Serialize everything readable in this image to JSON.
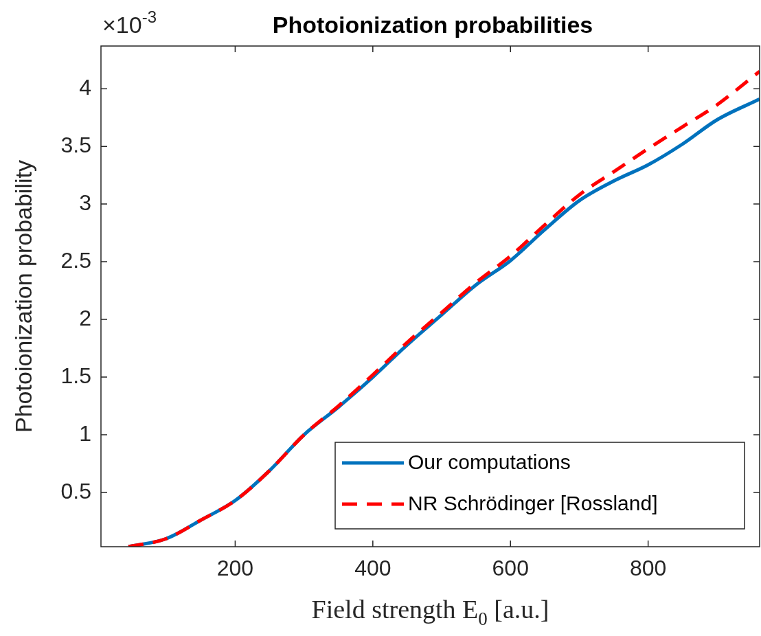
{
  "chart_data": {
    "type": "line",
    "title": "Photoionization probabilities",
    "xlabel": "Field strength E$_{0}$ [a.u.]",
    "ylabel": "Photoionization probability",
    "annotations": [
      "×10$^{-3}$"
    ],
    "xlim": [
      5,
      962
    ],
    "ylim": [
      0.03,
      4.37
    ],
    "xticks": [
      200,
      400,
      600,
      800
    ],
    "yticks": [
      0.5,
      1,
      1.5,
      2,
      2.5,
      3,
      3.5,
      4
    ],
    "legend": "bottom right",
    "series": [
      {
        "name": "Our computations",
        "color": "#0072bd",
        "line_style": "solid",
        "x": [
          45,
          100,
          150,
          200,
          250,
          300,
          350,
          400,
          450,
          500,
          550,
          600,
          650,
          700,
          750,
          800,
          850,
          900,
          962
        ],
        "values": [
          0.03,
          0.1,
          0.26,
          0.43,
          0.69,
          1.0,
          1.24,
          1.5,
          1.78,
          2.04,
          2.3,
          2.51,
          2.78,
          3.03,
          3.2,
          3.34,
          3.52,
          3.73,
          3.91
        ]
      },
      {
        "name": "NR Schrödinger [Rossland]",
        "color": "#ff0000",
        "line_style": "dashed",
        "x": [
          45,
          100,
          150,
          200,
          250,
          300,
          350,
          400,
          450,
          500,
          550,
          600,
          650,
          700,
          750,
          800,
          850,
          900,
          962
        ],
        "values": [
          0.03,
          0.1,
          0.26,
          0.43,
          0.69,
          1.0,
          1.25,
          1.52,
          1.8,
          2.06,
          2.32,
          2.55,
          2.82,
          3.08,
          3.28,
          3.48,
          3.67,
          3.86,
          4.15
        ]
      }
    ]
  }
}
